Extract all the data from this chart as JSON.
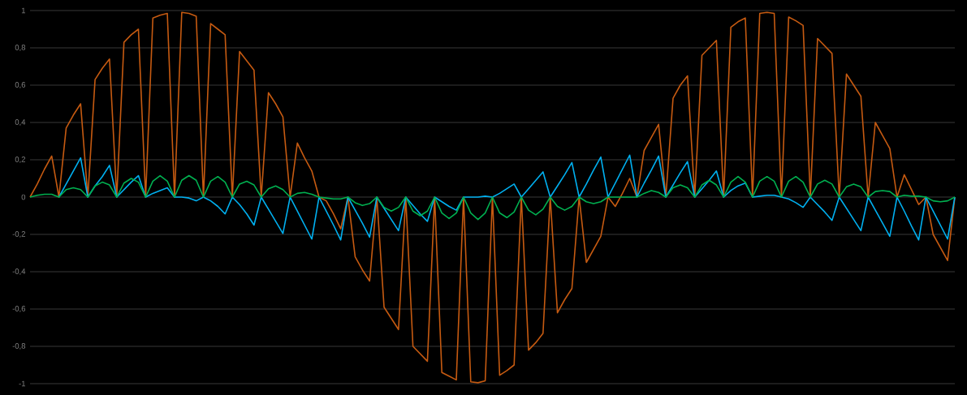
{
  "chart_data": {
    "type": "line",
    "categories": [
      null,
      null,
      null,
      null,
      null,
      null,
      null,
      null,
      null,
      null,
      null,
      null,
      null,
      null,
      null,
      null,
      null,
      null,
      null,
      null,
      null,
      null,
      null,
      null,
      null,
      null,
      null,
      null,
      null,
      null,
      null,
      null,
      null,
      null,
      null,
      null,
      null,
      null,
      null,
      null,
      null,
      null,
      null,
      null,
      null,
      null,
      null,
      null,
      null,
      null,
      null,
      null,
      null,
      null,
      null,
      null,
      null,
      null,
      null,
      null,
      null,
      null,
      null,
      null,
      null,
      null,
      null,
      null,
      null,
      null,
      null,
      null,
      null,
      null,
      null,
      null,
      null,
      null,
      null,
      null,
      null,
      null,
      null,
      null,
      null,
      null,
      null,
      null,
      null,
      null,
      null,
      null,
      null,
      null,
      null,
      null,
      null,
      null,
      null,
      null,
      null,
      null,
      null,
      null,
      null,
      null,
      null,
      null,
      null,
      null,
      null,
      null,
      null,
      null,
      null,
      null,
      null,
      null,
      null,
      null,
      null,
      null,
      null,
      null,
      null,
      null,
      null,
      null,
      null
    ],
    "series": [
      {
        "color": "#c55a11",
        "values": [
          0,
          0.07,
          0.15,
          0.22,
          0,
          0.37,
          0.44,
          0.5,
          0,
          0.63,
          0.69,
          0.74,
          0,
          0.83,
          0.87,
          0.9,
          0,
          0.96,
          0.975,
          0.985,
          0,
          0.99,
          0.985,
          0.97,
          0,
          0.93,
          0.9,
          0.87,
          0,
          0.78,
          0.73,
          0.68,
          0,
          0.56,
          0.5,
          0.43,
          0,
          0.29,
          0.21,
          0.14,
          0,
          -0.02,
          -0.09,
          -0.17,
          0,
          -0.32,
          -0.39,
          -0.45,
          0,
          -0.59,
          -0.65,
          -0.71,
          0,
          -0.8,
          -0.84,
          -0.88,
          0,
          -0.94,
          -0.96,
          -0.98,
          0,
          -0.99,
          -0.995,
          -0.985,
          0,
          -0.955,
          -0.93,
          -0.9,
          0,
          -0.82,
          -0.78,
          -0.73,
          0,
          -0.62,
          -0.55,
          -0.49,
          0,
          -0.35,
          -0.28,
          -0.21,
          0,
          -0.05,
          0.02,
          0.1,
          0,
          0.25,
          0.32,
          0.39,
          0,
          0.53,
          0.6,
          0.65,
          0,
          0.76,
          0.8,
          0.84,
          0,
          0.91,
          0.94,
          0.96,
          0,
          0.985,
          0.99,
          0.985,
          0,
          0.965,
          0.945,
          0.92,
          0,
          0.85,
          0.81,
          0.77,
          0,
          0.66,
          0.6,
          0.54,
          0,
          0.4,
          0.33,
          0.26,
          0,
          0.12,
          0.04,
          -0.04,
          0,
          -0.2,
          -0.27,
          -0.34,
          0
        ]
      },
      {
        "color": "#00b0f0",
        "values": [
          null,
          null,
          null,
          null,
          0,
          0.07,
          0.14,
          0.21,
          0,
          0.06,
          0.11,
          0.17,
          0,
          0.04,
          0.08,
          0.115,
          0,
          0.02,
          0.035,
          0.05,
          0,
          0,
          -0.005,
          -0.02,
          0,
          -0.02,
          -0.05,
          -0.09,
          0,
          -0.04,
          -0.09,
          -0.15,
          0,
          -0.065,
          -0.13,
          -0.195,
          0,
          -0.075,
          -0.15,
          -0.225,
          0,
          -0.075,
          -0.15,
          -0.23,
          0,
          -0.07,
          -0.14,
          -0.215,
          0,
          -0.06,
          -0.12,
          -0.18,
          0,
          -0.045,
          -0.09,
          -0.13,
          0,
          -0.025,
          -0.05,
          -0.07,
          0,
          0,
          0,
          0.005,
          0,
          0.02,
          0.045,
          0.07,
          0,
          0.045,
          0.09,
          0.135,
          0,
          0.06,
          0.12,
          0.185,
          0,
          0.07,
          0.145,
          0.215,
          0,
          0.075,
          0.15,
          0.225,
          0,
          0.075,
          0.145,
          0.22,
          0,
          0.065,
          0.13,
          0.19,
          0,
          0.045,
          0.09,
          0.14,
          0,
          0.035,
          0.06,
          0.075,
          0,
          0.005,
          0.01,
          0.01,
          0,
          -0.01,
          -0.03,
          -0.055,
          0,
          -0.04,
          -0.08,
          -0.125,
          0,
          -0.06,
          -0.12,
          -0.18,
          0,
          -0.07,
          -0.14,
          -0.21,
          0,
          -0.075,
          -0.155,
          -0.23,
          0,
          -0.075,
          -0.15,
          -0.225,
          0
        ]
      },
      {
        "color": "#00b050",
        "values": [
          0,
          0.01,
          0.015,
          0.015,
          0,
          0.04,
          0.05,
          0.04,
          0,
          0.06,
          0.08,
          0.065,
          0,
          0.075,
          0.1,
          0.08,
          0,
          0.085,
          0.115,
          0.085,
          0,
          0.09,
          0.115,
          0.09,
          0,
          0.085,
          0.11,
          0.08,
          0,
          0.07,
          0.085,
          0.065,
          0,
          0.045,
          0.06,
          0.04,
          0,
          0.02,
          0.025,
          0.015,
          0,
          -0.005,
          -0.01,
          -0.01,
          0,
          -0.03,
          -0.045,
          -0.035,
          0,
          -0.055,
          -0.075,
          -0.055,
          0,
          -0.075,
          -0.1,
          -0.075,
          0,
          -0.085,
          -0.115,
          -0.085,
          0,
          -0.085,
          -0.12,
          -0.085,
          0,
          -0.085,
          -0.11,
          -0.08,
          0,
          -0.07,
          -0.095,
          -0.065,
          0,
          -0.05,
          -0.07,
          -0.05,
          0,
          -0.025,
          -0.035,
          -0.025,
          0,
          0,
          0,
          0,
          0,
          0.02,
          0.035,
          0.025,
          0,
          0.05,
          0.065,
          0.05,
          0,
          0.065,
          0.09,
          0.065,
          0,
          0.08,
          0.11,
          0.08,
          0,
          0.085,
          0.11,
          0.085,
          0,
          0.085,
          0.11,
          0.08,
          0,
          0.07,
          0.09,
          0.07,
          0,
          0.055,
          0.07,
          0.055,
          0,
          0.03,
          0.035,
          0.03,
          0,
          0.01,
          0.005,
          0.005,
          0,
          -0.02,
          -0.025,
          -0.02,
          0
        ]
      }
    ],
    "ylim": [
      -1,
      1
    ],
    "yticks": [
      -1,
      {
        "value": -0.8,
        "label": "-0,8"
      },
      {
        "value": -0.6,
        "label": "-0,6"
      },
      {
        "value": -0.4,
        "label": "-0,4"
      },
      {
        "value": -0.2,
        "label": "-0,2"
      },
      0,
      {
        "value": 0.2,
        "label": "0,2"
      },
      {
        "value": 0.4,
        "label": "0,4"
      },
      {
        "value": 0.6,
        "label": "0,6"
      },
      {
        "value": 0.8,
        "label": "0,8"
      },
      1
    ],
    "grid": "y",
    "tick_labels": "y",
    "line_style": "solid"
  }
}
